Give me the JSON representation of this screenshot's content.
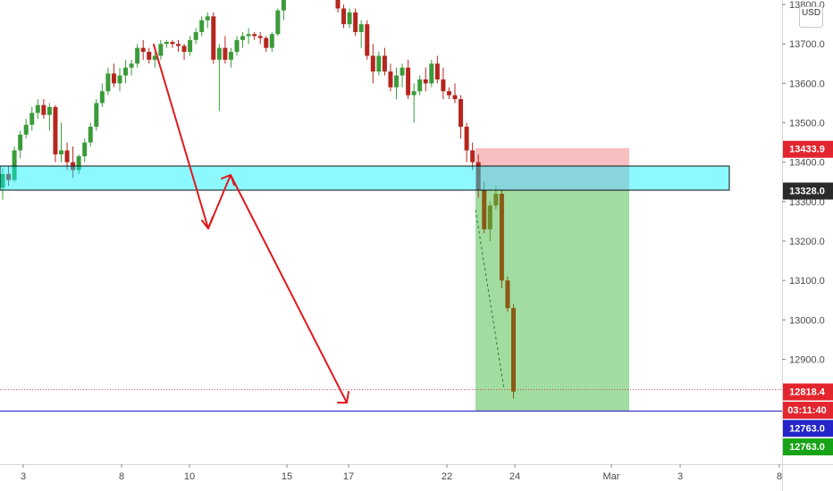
{
  "currency": "USD",
  "price_tags": [
    {
      "text": "13433.9",
      "bg": "#e3252d",
      "fg": "#ffffff",
      "y_value": 13433.9
    },
    {
      "text": "13328.0",
      "bg": "#2b2b2b",
      "fg": "#ffffff",
      "y_value": 13328.0
    },
    {
      "text": "12818.4",
      "bg": "#e3252d",
      "fg": "#ffffff",
      "y_value": 12818.4
    },
    {
      "text": "03:11:40",
      "bg": "#e3252d",
      "fg": "#ffffff",
      "y_value": 12772.0
    },
    {
      "text": "12763.0",
      "bg": "#2424c8",
      "fg": "#ffffff",
      "y_value": 12726.0
    },
    {
      "text": "12763.0",
      "bg": "#17a317",
      "fg": "#ffffff",
      "y_value": 12679.0
    }
  ],
  "chart_data": {
    "type": "candlestick",
    "instrument_currency": "USD",
    "ylim": [
      12660,
      13810
    ],
    "y_ticks": [
      12900,
      13000,
      13100,
      13200,
      13300,
      13400,
      13500,
      13600,
      13700,
      13800
    ],
    "y_tick_labels": [
      "12900.0",
      "13000.0",
      "13100.0",
      "13200.0",
      "13300.0",
      "13400.0",
      "13500.0",
      "13600.0",
      "13700.0",
      "13800.0"
    ],
    "x_axis_labels": [
      "3",
      "8",
      "10",
      "15",
      "17",
      "22",
      "24",
      "Mar",
      "3",
      "8"
    ],
    "colors": {
      "up": "#3b9b3b",
      "down": "#b5261e",
      "up_last": "#6b8f2a",
      "down_last": "#8b5a14"
    },
    "candles": [
      [
        13335,
        13385,
        13305,
        13370
      ],
      [
        13370,
        13390,
        13340,
        13355
      ],
      [
        13355,
        13440,
        13350,
        13430
      ],
      [
        13430,
        13480,
        13410,
        13470
      ],
      [
        13470,
        13510,
        13460,
        13495
      ],
      [
        13495,
        13540,
        13480,
        13525
      ],
      [
        13525,
        13560,
        13510,
        13545
      ],
      [
        13545,
        13560,
        13510,
        13520
      ],
      [
        13520,
        13550,
        13480,
        13540
      ],
      [
        13540,
        13545,
        13400,
        13420
      ],
      [
        13420,
        13500,
        13400,
        13430
      ],
      [
        13430,
        13450,
        13380,
        13400
      ],
      [
        13400,
        13440,
        13360,
        13380
      ],
      [
        13380,
        13420,
        13370,
        13415
      ],
      [
        13415,
        13460,
        13400,
        13450
      ],
      [
        13450,
        13500,
        13440,
        13490
      ],
      [
        13490,
        13560,
        13480,
        13550
      ],
      [
        13550,
        13600,
        13540,
        13580
      ],
      [
        13580,
        13640,
        13570,
        13625
      ],
      [
        13625,
        13650,
        13590,
        13600
      ],
      [
        13600,
        13640,
        13580,
        13620
      ],
      [
        13620,
        13660,
        13600,
        13640
      ],
      [
        13640,
        13660,
        13620,
        13650
      ],
      [
        13650,
        13700,
        13640,
        13690
      ],
      [
        13690,
        13710,
        13660,
        13680
      ],
      [
        13680,
        13690,
        13650,
        13660
      ],
      [
        13660,
        13680,
        13640,
        13670
      ],
      [
        13670,
        13710,
        13660,
        13700
      ],
      [
        13700,
        13710,
        13690,
        13705
      ],
      [
        13705,
        13710,
        13690,
        13700
      ],
      [
        13700,
        13710,
        13680,
        13695
      ],
      [
        13695,
        13700,
        13660,
        13680
      ],
      [
        13680,
        13720,
        13670,
        13710
      ],
      [
        13710,
        13740,
        13700,
        13730
      ],
      [
        13730,
        13770,
        13720,
        13760
      ],
      [
        13760,
        13780,
        13740,
        13770
      ],
      [
        13770,
        13780,
        13650,
        13660
      ],
      [
        13660,
        13700,
        13530,
        13690
      ],
      [
        13690,
        13720,
        13650,
        13660
      ],
      [
        13660,
        13690,
        13640,
        13680
      ],
      [
        13680,
        13720,
        13670,
        13710
      ],
      [
        13710,
        13730,
        13690,
        13720
      ],
      [
        13720,
        13740,
        13700,
        13725
      ],
      [
        13725,
        13730,
        13710,
        13720
      ],
      [
        13720,
        13730,
        13700,
        13715
      ],
      [
        13715,
        13720,
        13680,
        13690
      ],
      [
        13690,
        13730,
        13680,
        13725
      ],
      [
        13725,
        13790,
        13720,
        13785
      ],
      [
        13785,
        13840,
        13760,
        13820
      ],
      [
        13820,
        13830,
        13780,
        13790
      ],
      [
        13790,
        13800,
        13740,
        13750
      ],
      [
        13750,
        13790,
        13740,
        13780
      ],
      [
        13780,
        13790,
        13720,
        13730
      ],
      [
        13730,
        13760,
        13690,
        13750
      ],
      [
        13750,
        13760,
        13660,
        13670
      ],
      [
        13670,
        13700,
        13600,
        13630
      ],
      [
        13630,
        13680,
        13620,
        13670
      ],
      [
        13670,
        13690,
        13620,
        13630
      ],
      [
        13630,
        13650,
        13580,
        13590
      ],
      [
        13590,
        13640,
        13560,
        13620
      ],
      [
        13620,
        13650,
        13590,
        13640
      ],
      [
        13640,
        13660,
        13560,
        13570
      ],
      [
        13570,
        13600,
        13500,
        13580
      ],
      [
        13580,
        13620,
        13570,
        13610
      ],
      [
        13610,
        13640,
        13580,
        13600
      ],
      [
        13600,
        13660,
        13590,
        13650
      ],
      [
        13650,
        13670,
        13600,
        13610
      ],
      [
        13610,
        13640,
        13560,
        13580
      ],
      [
        13580,
        13590,
        13560,
        13570
      ],
      [
        13570,
        13600,
        13550,
        13560
      ],
      [
        13560,
        13570,
        13460,
        13490
      ],
      [
        13490,
        13500,
        13400,
        13430
      ],
      [
        13430,
        13450,
        13380,
        13400
      ],
      [
        13400,
        13420,
        13310,
        13330
      ],
      [
        13330,
        13350,
        13220,
        13230
      ],
      [
        13230,
        13300,
        13200,
        13290
      ],
      [
        13290,
        13340,
        13280,
        13320
      ],
      [
        13320,
        13330,
        13080,
        13100
      ],
      [
        13100,
        13110,
        13020,
        13030
      ],
      [
        13030,
        13040,
        12800,
        12818
      ]
    ]
  }
}
